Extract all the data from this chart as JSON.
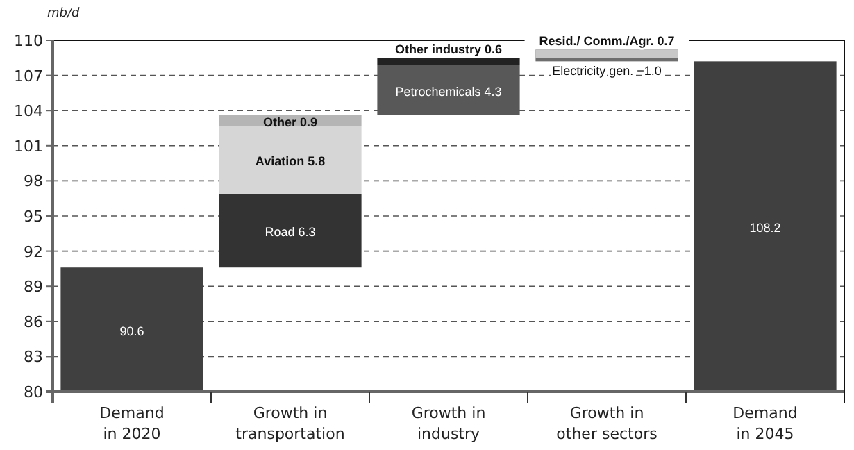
{
  "chart_data": {
    "type": "bar",
    "ylabel": "mb/d",
    "categories": [
      "Demand\nin 2020",
      "Growth in\ntransportation",
      "Growth in\nindustry",
      "Growth in\nother sectors",
      "Demand\nin 2045"
    ],
    "ylim": [
      80,
      110
    ],
    "yticks": [
      80,
      83,
      86,
      89,
      92,
      95,
      98,
      101,
      104,
      107,
      110
    ],
    "grid": "y",
    "series": [
      {
        "color": "#404040",
        "values": [
          90.6,
          null,
          null,
          null,
          108.2
        ],
        "value_labels": [
          "90.6",
          null,
          null,
          null,
          "108.2"
        ]
      },
      {
        "color": "#333333",
        "values": [
          null,
          6.3,
          null,
          null,
          null
        ],
        "base": [
          null,
          90.6,
          null,
          null,
          null
        ],
        "value_labels": [
          null,
          "Road 6.3",
          null,
          null,
          null
        ]
      },
      {
        "color": "#d6d6d6",
        "values": [
          null,
          5.8,
          null,
          null,
          null
        ],
        "base": [
          null,
          96.9,
          null,
          null,
          null
        ],
        "value_labels": [
          null,
          "Aviation 5.8",
          null,
          null,
          null
        ]
      },
      {
        "color": "#b5b5b5",
        "values": [
          null,
          0.9,
          null,
          null,
          null
        ],
        "base": [
          null,
          102.7,
          null,
          null,
          null
        ],
        "value_labels": [
          null,
          "Other 0.9",
          null,
          null,
          null
        ]
      },
      {
        "color": "#585858",
        "values": [
          null,
          null,
          4.3,
          null,
          null
        ],
        "base": [
          null,
          null,
          103.6,
          null,
          null
        ],
        "value_labels": [
          null,
          null,
          "Petrochemicals 4.3",
          null,
          null
        ]
      },
      {
        "color": "#222222",
        "values": [
          null,
          null,
          0.6,
          null,
          null
        ],
        "base": [
          null,
          null,
          107.9,
          null,
          null
        ],
        "value_labels": [
          null,
          null,
          "Other industry 0.6",
          null,
          null
        ]
      },
      {
        "color": "#6e6e6e",
        "values": [
          null,
          null,
          null,
          -1.0,
          null
        ],
        "base": [
          null,
          null,
          null,
          109.2,
          null
        ],
        "value_labels": [
          null,
          null,
          null,
          "Electricity gen. −1.0",
          null
        ]
      },
      {
        "color": "#c8c8c8",
        "values": [
          null,
          null,
          null,
          0.7,
          null
        ],
        "base": [
          null,
          null,
          null,
          108.5,
          null
        ],
        "value_labels": [
          null,
          null,
          null,
          "Resid./ Comm./Agr. 0.7",
          null
        ]
      }
    ]
  }
}
